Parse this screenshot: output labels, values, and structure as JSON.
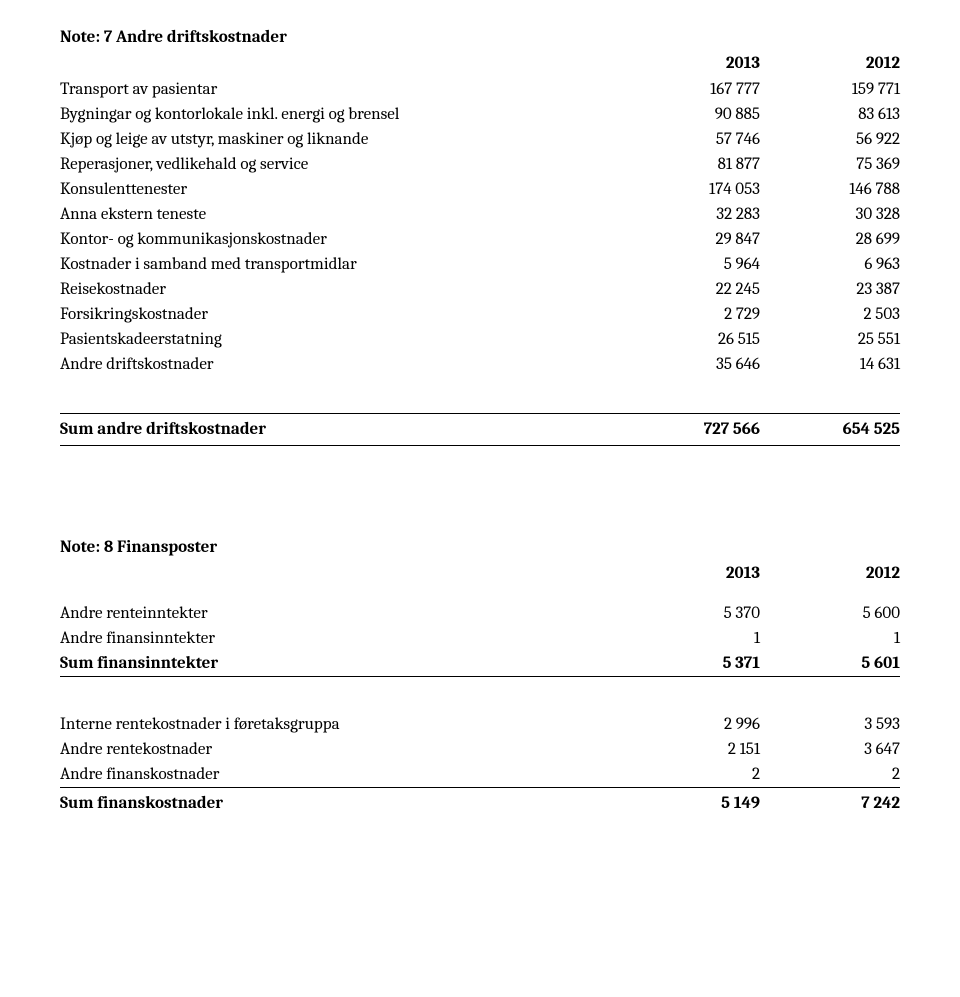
{
  "note7": {
    "title": "Note: 7 Andre driftskostnader",
    "col1": "2013",
    "col2": "2012",
    "rows": [
      {
        "label": "Transport av pasientar",
        "v1": "167 777",
        "v2": "159 771"
      },
      {
        "label": "Bygningar og kontorlokale inkl. energi og brensel",
        "v1": "90 885",
        "v2": "83 613"
      },
      {
        "label": "Kjøp og leige av utstyr, maskiner og liknande",
        "v1": "57 746",
        "v2": "56 922"
      },
      {
        "label": "Reperasjoner, vedlikehald og service",
        "v1": "81 877",
        "v2": "75 369"
      },
      {
        "label": "Konsulenttenester",
        "v1": "174 053",
        "v2": "146 788"
      },
      {
        "label": "Anna ekstern teneste",
        "v1": "32 283",
        "v2": "30 328"
      },
      {
        "label": "Kontor- og kommunikasjonskostnader",
        "v1": "29 847",
        "v2": "28 699"
      },
      {
        "label": "Kostnader i samband med transportmidlar",
        "v1": "5 964",
        "v2": "6 963"
      },
      {
        "label": "Reisekostnader",
        "v1": "22 245",
        "v2": "23 387"
      },
      {
        "label": "Forsikringskostnader",
        "v1": "2 729",
        "v2": "2 503"
      },
      {
        "label": "Pasientskadeerstatning",
        "v1": "26 515",
        "v2": "25 551"
      },
      {
        "label": "Andre driftskostnader",
        "v1": "35 646",
        "v2": "14 631"
      }
    ],
    "sum": {
      "label": "Sum andre driftskostnader",
      "v1": "727 566",
      "v2": "654 525"
    }
  },
  "note8": {
    "title": "Note: 8 Finansposter",
    "col1": "2013",
    "col2": "2012",
    "income_rows": [
      {
        "label": "Andre renteinntekter",
        "v1": "5 370",
        "v2": "5 600"
      },
      {
        "label": "Andre finansinntekter",
        "v1": "1",
        "v2": "1"
      }
    ],
    "income_sum": {
      "label": "Sum finansinntekter",
      "v1": "5 371",
      "v2": "5 601"
    },
    "cost_rows": [
      {
        "label": "Interne rentekostnader i føretaksgruppa",
        "v1": "2 996",
        "v2": "3 593"
      },
      {
        "label": "Andre rentekostnader",
        "v1": "2 151",
        "v2": "3 647"
      },
      {
        "label": "Andre finanskostnader",
        "v1": "2",
        "v2": "2"
      }
    ],
    "cost_sum": {
      "label": "Sum finanskostnader",
      "v1": "5 149",
      "v2": "7 242"
    }
  }
}
